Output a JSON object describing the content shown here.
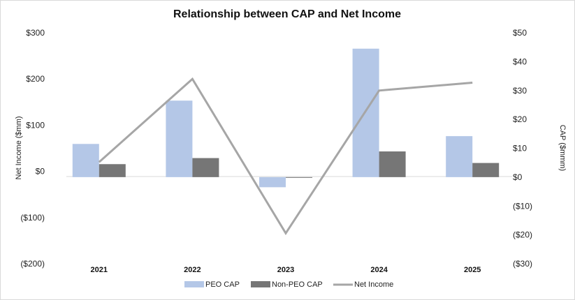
{
  "chart_data": {
    "type": "bar",
    "title": "Relationship between CAP and Net Income",
    "categories": [
      "2021",
      "2022",
      "2023",
      "2024",
      "2025"
    ],
    "ylabel_left": "Net Income ($mm)",
    "ylabel_right": "CAP ($mmm)",
    "ylim_left": [
      -200,
      300
    ],
    "ylim_right": [
      -30,
      50
    ],
    "yticks_left": [
      "$300",
      "$200",
      "$100",
      "$0",
      "($100)",
      "($200)"
    ],
    "yticks_right": [
      "$50",
      "$40",
      "$30",
      "$20",
      "$10",
      "$0",
      "($10)",
      "($20)",
      "($30)"
    ],
    "series": [
      {
        "name": "PEO CAP",
        "kind": "bar",
        "axis": "right",
        "color": "#b4c7e7",
        "values": [
          11.5,
          26.5,
          -3.5,
          44.5,
          14.2
        ]
      },
      {
        "name": "Non-PEO CAP",
        "kind": "bar",
        "axis": "right",
        "color": "#767676",
        "values": [
          4.5,
          6.6,
          -0.2,
          8.9,
          4.9
        ]
      },
      {
        "name": "Net Income",
        "kind": "line",
        "axis": "left",
        "color": "#a6a6a6",
        "values": [
          20,
          200,
          -134,
          175,
          192
        ]
      }
    ],
    "legend": [
      "PEO CAP",
      "Non-PEO CAP",
      "Net Income"
    ]
  }
}
